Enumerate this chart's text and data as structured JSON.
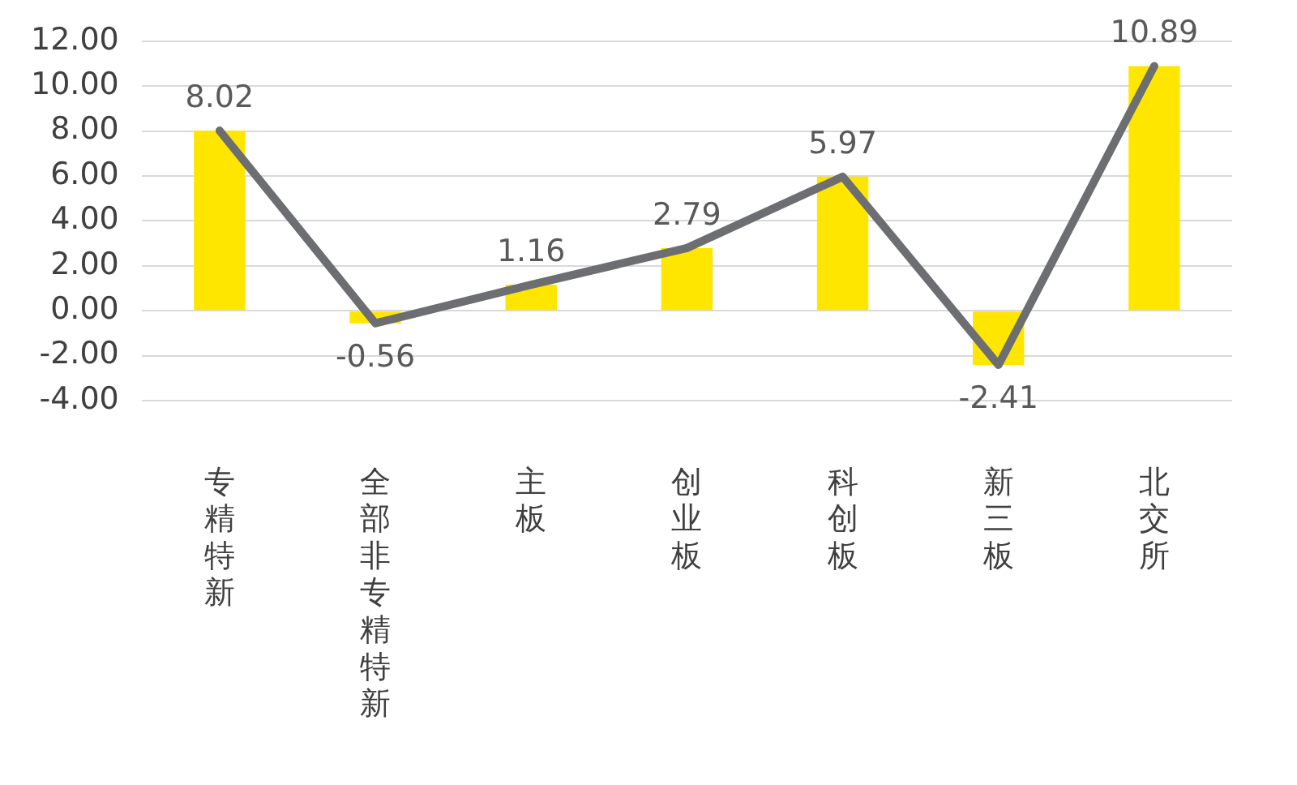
{
  "chart_data": {
    "type": "bar",
    "categories": [
      "专精特新",
      "全部非专精特新",
      "主板",
      "创业板",
      "科创板",
      "新三板",
      "北交所"
    ],
    "series": [
      {
        "color": "#ffe600",
        "values": [
          8.02,
          -0.56,
          1.16,
          2.79,
          5.97,
          -2.41,
          10.89
        ],
        "value_labels": [
          "8.02",
          "-0.56",
          "1.16",
          "2.79",
          "5.97",
          "-2.41",
          "10.89"
        ]
      },
      {
        "type": "line",
        "color": "#6d6e71",
        "values": [
          8.02,
          -0.56,
          1.16,
          2.79,
          5.97,
          -2.41,
          10.89
        ]
      }
    ],
    "ylim": [
      -4,
      12
    ],
    "yticks": [
      {
        "value": -4,
        "label": "-4.00"
      },
      {
        "value": -2,
        "label": "-2.00"
      },
      {
        "value": 0,
        "label": "0.00"
      },
      {
        "value": 2,
        "label": "2.00"
      },
      {
        "value": 4,
        "label": "4.00"
      },
      {
        "value": 6,
        "label": "6.00"
      },
      {
        "value": 8,
        "label": "8.00"
      },
      {
        "value": 10,
        "label": "10.00"
      },
      {
        "value": 12,
        "label": "12.00"
      }
    ],
    "grid": "y",
    "legend": false,
    "marker": "none"
  }
}
